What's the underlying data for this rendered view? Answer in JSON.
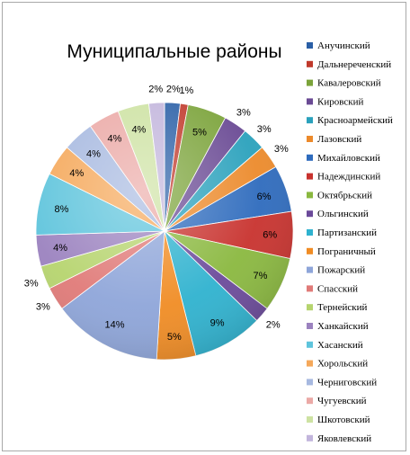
{
  "chart_data": {
    "type": "pie",
    "title": "Муниципальные районы",
    "legend_position": "right",
    "slices": [
      {
        "name": "Анучинский",
        "value": 2,
        "label": "2%",
        "color": "#2a5fa6"
      },
      {
        "name": "Дальнереченский",
        "value": 1,
        "label": "1%",
        "color": "#c0392b"
      },
      {
        "name": "Кавалеровский",
        "value": 5,
        "label": "5%",
        "color": "#7ba33a"
      },
      {
        "name": "Кировский",
        "value": 3,
        "label": "3%",
        "color": "#6a4a94"
      },
      {
        "name": "Красноармейский",
        "value": 3,
        "label": "3%",
        "color": "#2aa1bc"
      },
      {
        "name": "Лазовский",
        "value": 3,
        "label": "3%",
        "color": "#ec8a2b"
      },
      {
        "name": "Михайловский",
        "value": 6,
        "label": "6%",
        "color": "#2e6bbd"
      },
      {
        "name": "Надеждинский",
        "value": 6,
        "label": "6%",
        "color": "#c8322e"
      },
      {
        "name": "Октябрьский",
        "value": 7,
        "label": "7%",
        "color": "#8ab83f"
      },
      {
        "name": "Ольгинский",
        "value": 2,
        "label": "2%",
        "color": "#6b4a9a"
      },
      {
        "name": "Партизанский",
        "value": 9,
        "label": "9%",
        "color": "#2fb2cf"
      },
      {
        "name": "Пограничный",
        "value": 5,
        "label": "5%",
        "color": "#f08c24"
      },
      {
        "name": "Пожарский",
        "value": 14,
        "label": "14%",
        "color": "#8ea5d9"
      },
      {
        "name": "Спасский",
        "value": 3,
        "label": "3%",
        "color": "#e07a78"
      },
      {
        "name": "Тернейский",
        "value": 3,
        "label": "3%",
        "color": "#b6d46e"
      },
      {
        "name": "Ханкайский",
        "value": 4,
        "label": "4%",
        "color": "#9b82bf"
      },
      {
        "name": "Хасанский",
        "value": 8,
        "label": "8%",
        "color": "#5ec4dc"
      },
      {
        "name": "Хорольский",
        "value": 4,
        "label": "4%",
        "color": "#f5a85a"
      },
      {
        "name": "Черниговский",
        "value": 4,
        "label": "4%",
        "color": "#a7b9e0"
      },
      {
        "name": "Чугуевский",
        "value": 4,
        "label": "4%",
        "color": "#eba9a6"
      },
      {
        "name": "Шкотовский",
        "value": 4,
        "label": "4%",
        "color": "#cde2a2"
      },
      {
        "name": "Яковлевский",
        "value": 2,
        "label": "2%",
        "color": "#c2b5dc"
      }
    ]
  }
}
